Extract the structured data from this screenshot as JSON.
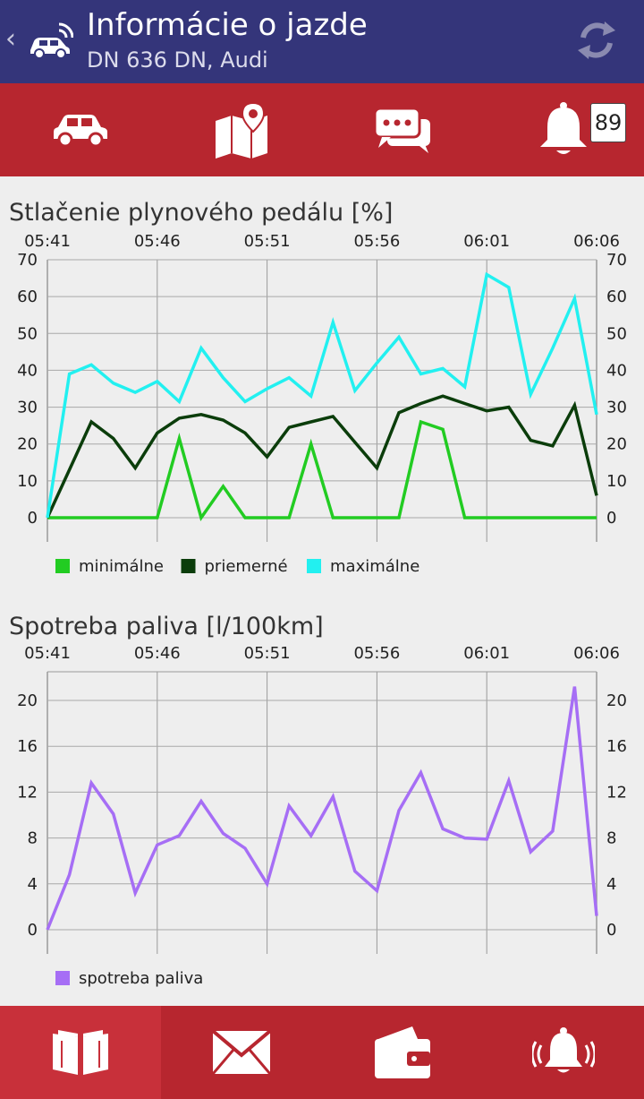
{
  "header": {
    "back_glyph": "‹",
    "title": "Informácie o jazde",
    "subtitle": "DN 636 DN, Audi",
    "icons": [
      "car-wifi-logo",
      "refresh-icon"
    ]
  },
  "top_nav": {
    "items": [
      "car-icon",
      "map-icon",
      "chat-icon",
      "bell-icon"
    ],
    "notification_count": "89"
  },
  "bottom_nav": {
    "items": [
      "book-icon",
      "mail-icon",
      "wallet-icon",
      "alarm-icon"
    ],
    "active_index": 0
  },
  "colors": {
    "header_bg": "#34357a",
    "nav_bg": "#b7262f",
    "min": "#22cc22",
    "avg": "#0b3d0b",
    "max": "#22f0f0",
    "fuel": "#a66ef5"
  },
  "charts": {
    "pedal": {
      "title": "Stlačenie plynového pedálu [%]"
    },
    "fuel": {
      "title": "Spotreba paliva [l/100km]"
    }
  },
  "chart_data": [
    {
      "type": "line",
      "title": "Stlačenie plynového pedálu [%]",
      "x_ticks": [
        "05:41",
        "05:46",
        "05:51",
        "05:56",
        "06:01",
        "06:06"
      ],
      "y_ticks": [
        0,
        10,
        20,
        30,
        40,
        50,
        60,
        70
      ],
      "ylim": [
        0,
        70
      ],
      "grid": true,
      "legend_position": "bottom-left",
      "series": [
        {
          "name": "minimálne",
          "color": "#22cc22",
          "values": [
            0,
            0,
            0,
            0,
            0,
            0,
            21.5,
            0,
            8.5,
            0,
            0,
            0,
            20,
            0,
            0,
            0,
            0,
            26,
            24,
            0,
            0,
            0,
            0,
            0,
            0,
            0
          ]
        },
        {
          "name": "priemerné",
          "color": "#0b3d0b",
          "values": [
            0,
            13,
            26,
            21.5,
            13.5,
            23,
            27,
            28,
            26.5,
            23,
            16.5,
            24.5,
            26,
            27.5,
            20.5,
            13.5,
            28.5,
            31,
            33,
            31,
            29,
            30,
            21,
            19.5,
            30.5,
            6
          ]
        },
        {
          "name": "maximálne",
          "color": "#22f0f0",
          "values": [
            0,
            39,
            41.5,
            36.5,
            34,
            37,
            31.5,
            46,
            38,
            31.5,
            35,
            38,
            33,
            53,
            34.5,
            42,
            49,
            39,
            40.5,
            35.5,
            66,
            62.5,
            33.5,
            46,
            59.5,
            28
          ]
        }
      ]
    },
    {
      "type": "line",
      "title": "Spotreba paliva [l/100km]",
      "x_ticks": [
        "05:41",
        "05:46",
        "05:51",
        "05:56",
        "06:01",
        "06:06"
      ],
      "y_ticks": [
        0,
        4,
        8,
        12,
        16,
        20
      ],
      "ylim": [
        0,
        22.5
      ],
      "grid": true,
      "legend_position": "bottom-left",
      "series": [
        {
          "name": "spotreba paliva",
          "color": "#a66ef5",
          "values": [
            0,
            4.8,
            12.8,
            10.1,
            3.2,
            7.4,
            8.2,
            11.2,
            8.4,
            7.1,
            4,
            10.8,
            8.2,
            11.6,
            5.1,
            3.4,
            10.4,
            13.7,
            8.8,
            8,
            7.9,
            13,
            6.8,
            8.6,
            21.2,
            1.2
          ]
        }
      ]
    }
  ]
}
